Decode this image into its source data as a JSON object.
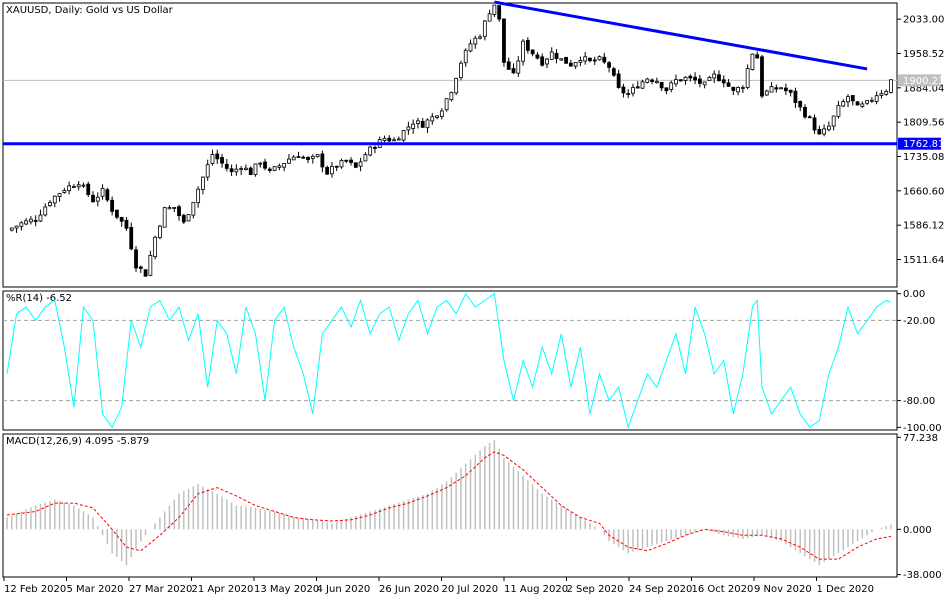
{
  "chart_data": [
    {
      "type": "candlestick",
      "title": "XAUUSD, Daily:  Gold vs US Dollar",
      "y_ticks": [
        "2033.00",
        "1958.52",
        "1884.04",
        "1809.56",
        "1735.08",
        "1660.60",
        "1586.12",
        "1511.64"
      ],
      "y_ticks_values": [
        2033.0,
        1958.52,
        1884.04,
        1809.56,
        1735.08,
        1660.6,
        1586.12,
        1511.64
      ],
      "ylim": [
        1452,
        2068
      ],
      "current_price": {
        "label": "1900.23",
        "value": 1900.23
      },
      "support_line": {
        "label": "1762.81",
        "value": 1762.81,
        "color": "#0000ff"
      },
      "trendline": {
        "from": {
          "date": "6 Aug 2020",
          "value": 2070
        },
        "to": {
          "date": "27 Nov 2020",
          "value": 1925
        },
        "color": "#0000ff"
      },
      "x_labels": [
        "12 Feb 2020",
        "5 Mar 2020",
        "27 Mar 2020",
        "21 Apr 2020",
        "13 May 2020",
        "4 Jun 2020",
        "26 Jun 2020",
        "20 Jul 2020",
        "11 Aug 2020",
        "2 Sep 2020",
        "24 Sep 2020",
        "16 Oct 2020",
        "9 Nov 2020",
        "1 Dec 2020"
      ],
      "close_path": [
        [
          0,
          1575
        ],
        [
          3,
          1590
        ],
        [
          6,
          1600
        ],
        [
          9,
          1640
        ],
        [
          12,
          1665
        ],
        [
          15,
          1680
        ],
        [
          18,
          1640
        ],
        [
          20,
          1660
        ],
        [
          22,
          1620
        ],
        [
          25,
          1580
        ],
        [
          27,
          1500
        ],
        [
          29,
          1480
        ],
        [
          31,
          1560
        ],
        [
          33,
          1620
        ],
        [
          35,
          1625
        ],
        [
          37,
          1590
        ],
        [
          39,
          1640
        ],
        [
          41,
          1690
        ],
        [
          43,
          1740
        ],
        [
          45,
          1720
        ],
        [
          47,
          1700
        ],
        [
          49,
          1715
        ],
        [
          51,
          1700
        ],
        [
          53,
          1725
        ],
        [
          55,
          1700
        ],
        [
          57,
          1715
        ],
        [
          59,
          1730
        ],
        [
          61,
          1740
        ],
        [
          63,
          1725
        ],
        [
          65,
          1735
        ],
        [
          67,
          1700
        ],
        [
          69,
          1715
        ],
        [
          71,
          1725
        ],
        [
          73,
          1710
        ],
        [
          75,
          1740
        ],
        [
          77,
          1760
        ],
        [
          79,
          1775
        ],
        [
          81,
          1770
        ],
        [
          83,
          1790
        ],
        [
          85,
          1810
        ],
        [
          87,
          1805
        ],
        [
          89,
          1820
        ],
        [
          91,
          1840
        ],
        [
          93,
          1880
        ],
        [
          95,
          1940
        ],
        [
          97,
          1980
        ],
        [
          99,
          2000
        ],
        [
          101,
          2050
        ],
        [
          102,
          2065
        ],
        [
          103,
          2030
        ],
        [
          104,
          1940
        ],
        [
          106,
          1910
        ],
        [
          108,
          1980
        ],
        [
          110,
          1960
        ],
        [
          112,
          1940
        ],
        [
          114,
          1960
        ],
        [
          116,
          1945
        ],
        [
          118,
          1935
        ],
        [
          120,
          1950
        ],
        [
          122,
          1940
        ],
        [
          124,
          1945
        ],
        [
          126,
          1930
        ],
        [
          128,
          1880
        ],
        [
          130,
          1870
        ],
        [
          132,
          1890
        ],
        [
          134,
          1905
        ],
        [
          136,
          1900
        ],
        [
          138,
          1880
        ],
        [
          140,
          1900
        ],
        [
          142,
          1905
        ],
        [
          144,
          1900
        ],
        [
          146,
          1890
        ],
        [
          148,
          1910
        ],
        [
          150,
          1900
        ],
        [
          152,
          1875
        ],
        [
          154,
          1890
        ],
        [
          156,
          1960
        ],
        [
          157,
          1950
        ],
        [
          158,
          1870
        ],
        [
          160,
          1880
        ],
        [
          162,
          1885
        ],
        [
          164,
          1870
        ],
        [
          166,
          1840
        ],
        [
          168,
          1815
        ],
        [
          170,
          1780
        ],
        [
          172,
          1800
        ],
        [
          174,
          1840
        ],
        [
          176,
          1865
        ],
        [
          178,
          1840
        ],
        [
          180,
          1850
        ],
        [
          182,
          1870
        ],
        [
          184,
          1880
        ],
        [
          185,
          1900
        ]
      ]
    },
    {
      "type": "line",
      "title": "%R(14) -6.52",
      "y_ticks": [
        "0.00",
        "-20.00",
        "-80.00",
        "-100.00"
      ],
      "y_ticks_values": [
        0,
        -20,
        -80,
        -100
      ],
      "ylim": [
        -102,
        2
      ],
      "levels": [
        -20,
        -80
      ],
      "color": "#00ffff",
      "path": [
        [
          0,
          -60
        ],
        [
          2,
          -15
        ],
        [
          4,
          -10
        ],
        [
          6,
          -20
        ],
        [
          8,
          -10
        ],
        [
          10,
          -5
        ],
        [
          12,
          -40
        ],
        [
          14,
          -85
        ],
        [
          16,
          -10
        ],
        [
          18,
          -20
        ],
        [
          20,
          -90
        ],
        [
          22,
          -100
        ],
        [
          24,
          -85
        ],
        [
          26,
          -20
        ],
        [
          28,
          -40
        ],
        [
          30,
          -10
        ],
        [
          32,
          -5
        ],
        [
          34,
          -20
        ],
        [
          36,
          -10
        ],
        [
          38,
          -35
        ],
        [
          40,
          -15
        ],
        [
          42,
          -70
        ],
        [
          44,
          -20
        ],
        [
          46,
          -30
        ],
        [
          48,
          -60
        ],
        [
          50,
          -10
        ],
        [
          52,
          -30
        ],
        [
          54,
          -80
        ],
        [
          56,
          -20
        ],
        [
          58,
          -10
        ],
        [
          60,
          -40
        ],
        [
          62,
          -60
        ],
        [
          64,
          -90
        ],
        [
          66,
          -30
        ],
        [
          68,
          -20
        ],
        [
          70,
          -10
        ],
        [
          72,
          -25
        ],
        [
          74,
          -5
        ],
        [
          76,
          -30
        ],
        [
          78,
          -15
        ],
        [
          80,
          -10
        ],
        [
          82,
          -35
        ],
        [
          84,
          -15
        ],
        [
          86,
          -5
        ],
        [
          88,
          -30
        ],
        [
          90,
          -10
        ],
        [
          92,
          -5
        ],
        [
          94,
          -15
        ],
        [
          96,
          0
        ],
        [
          98,
          -10
        ],
        [
          100,
          -5
        ],
        [
          102,
          0
        ],
        [
          104,
          -50
        ],
        [
          106,
          -80
        ],
        [
          108,
          -50
        ],
        [
          110,
          -70
        ],
        [
          112,
          -40
        ],
        [
          114,
          -60
        ],
        [
          116,
          -30
        ],
        [
          118,
          -70
        ],
        [
          120,
          -40
        ],
        [
          122,
          -90
        ],
        [
          124,
          -60
        ],
        [
          126,
          -80
        ],
        [
          128,
          -70
        ],
        [
          130,
          -100
        ],
        [
          132,
          -80
        ],
        [
          134,
          -60
        ],
        [
          136,
          -70
        ],
        [
          138,
          -50
        ],
        [
          140,
          -30
        ],
        [
          142,
          -60
        ],
        [
          144,
          -10
        ],
        [
          146,
          -30
        ],
        [
          148,
          -60
        ],
        [
          150,
          -50
        ],
        [
          152,
          -90
        ],
        [
          154,
          -60
        ],
        [
          156,
          -10
        ],
        [
          157,
          -5
        ],
        [
          158,
          -70
        ],
        [
          160,
          -90
        ],
        [
          162,
          -80
        ],
        [
          164,
          -70
        ],
        [
          166,
          -90
        ],
        [
          168,
          -100
        ],
        [
          170,
          -95
        ],
        [
          172,
          -60
        ],
        [
          174,
          -40
        ],
        [
          176,
          -10
        ],
        [
          178,
          -30
        ],
        [
          180,
          -20
        ],
        [
          182,
          -10
        ],
        [
          184,
          -5
        ],
        [
          185,
          -6.52
        ]
      ]
    },
    {
      "type": "bar",
      "title": "MACD(12,26,9) 4.095 -5.879",
      "y_ticks": [
        "77.238",
        "0.000",
        "-38.000"
      ],
      "y_ticks_values": [
        77.238,
        0,
        -38
      ],
      "ylim": [
        -40,
        80
      ],
      "histogram_color": "#c0c0c0",
      "signal_color": "#ff0000",
      "histogram_path": [
        [
          0,
          10
        ],
        [
          6,
          20
        ],
        [
          10,
          25
        ],
        [
          14,
          20
        ],
        [
          18,
          10
        ],
        [
          22,
          -20
        ],
        [
          25,
          -30
        ],
        [
          28,
          -10
        ],
        [
          32,
          10
        ],
        [
          36,
          30
        ],
        [
          40,
          38
        ],
        [
          44,
          30
        ],
        [
          48,
          20
        ],
        [
          52,
          18
        ],
        [
          56,
          15
        ],
        [
          60,
          10
        ],
        [
          64,
          8
        ],
        [
          68,
          5
        ],
        [
          72,
          10
        ],
        [
          76,
          15
        ],
        [
          80,
          20
        ],
        [
          84,
          25
        ],
        [
          88,
          30
        ],
        [
          92,
          40
        ],
        [
          96,
          55
        ],
        [
          100,
          70
        ],
        [
          102,
          75
        ],
        [
          104,
          60
        ],
        [
          108,
          45
        ],
        [
          112,
          30
        ],
        [
          116,
          20
        ],
        [
          120,
          10
        ],
        [
          124,
          0
        ],
        [
          126,
          -10
        ],
        [
          130,
          -20
        ],
        [
          134,
          -15
        ],
        [
          138,
          -10
        ],
        [
          142,
          -5
        ],
        [
          146,
          0
        ],
        [
          150,
          -5
        ],
        [
          154,
          -8
        ],
        [
          158,
          -5
        ],
        [
          162,
          -10
        ],
        [
          166,
          -20
        ],
        [
          170,
          -30
        ],
        [
          174,
          -20
        ],
        [
          178,
          -10
        ],
        [
          182,
          0
        ],
        [
          185,
          4
        ]
      ],
      "signal_path": [
        [
          0,
          12
        ],
        [
          6,
          15
        ],
        [
          10,
          22
        ],
        [
          14,
          22
        ],
        [
          18,
          18
        ],
        [
          22,
          0
        ],
        [
          25,
          -15
        ],
        [
          28,
          -18
        ],
        [
          32,
          -5
        ],
        [
          36,
          10
        ],
        [
          40,
          30
        ],
        [
          44,
          35
        ],
        [
          48,
          28
        ],
        [
          52,
          20
        ],
        [
          56,
          15
        ],
        [
          60,
          10
        ],
        [
          64,
          8
        ],
        [
          68,
          7
        ],
        [
          72,
          8
        ],
        [
          76,
          12
        ],
        [
          80,
          18
        ],
        [
          84,
          22
        ],
        [
          88,
          28
        ],
        [
          92,
          35
        ],
        [
          96,
          45
        ],
        [
          100,
          60
        ],
        [
          102,
          65
        ],
        [
          104,
          62
        ],
        [
          108,
          50
        ],
        [
          112,
          35
        ],
        [
          116,
          20
        ],
        [
          120,
          10
        ],
        [
          124,
          5
        ],
        [
          126,
          -5
        ],
        [
          130,
          -15
        ],
        [
          134,
          -18
        ],
        [
          138,
          -12
        ],
        [
          142,
          -5
        ],
        [
          146,
          0
        ],
        [
          150,
          -2
        ],
        [
          154,
          -5
        ],
        [
          158,
          -5
        ],
        [
          162,
          -8
        ],
        [
          166,
          -15
        ],
        [
          170,
          -25
        ],
        [
          174,
          -25
        ],
        [
          178,
          -15
        ],
        [
          182,
          -8
        ],
        [
          185,
          -5.879
        ]
      ]
    }
  ]
}
